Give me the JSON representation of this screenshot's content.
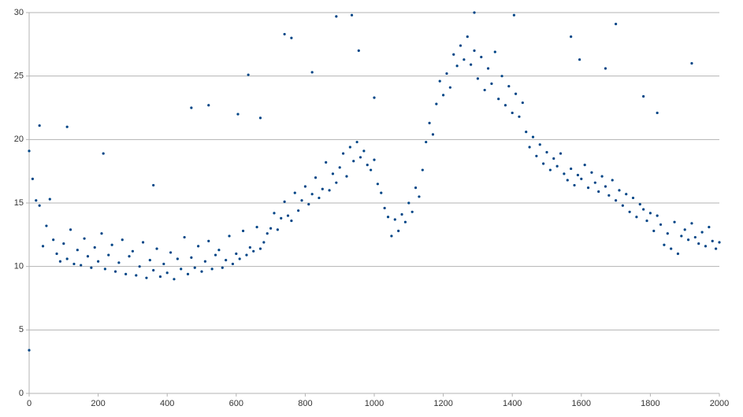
{
  "chart_data": {
    "type": "scatter",
    "color": "#004586",
    "grid": true,
    "xlim": [
      0,
      2000
    ],
    "ylim": [
      0,
      30
    ],
    "xticks": [
      0,
      200,
      400,
      600,
      800,
      1000,
      1200,
      1400,
      1600,
      1800,
      2000
    ],
    "yticks": [
      0,
      5,
      10,
      15,
      20,
      25,
      30
    ],
    "x": [
      0,
      10,
      20,
      30,
      40,
      50,
      60,
      70,
      80,
      90,
      100,
      110,
      120,
      130,
      140,
      150,
      160,
      170,
      180,
      190,
      200,
      210,
      220,
      230,
      240,
      250,
      260,
      270,
      280,
      290,
      300,
      310,
      320,
      330,
      340,
      350,
      360,
      370,
      380,
      390,
      400,
      410,
      420,
      430,
      440,
      450,
      460,
      470,
      480,
      490,
      500,
      510,
      520,
      530,
      540,
      550,
      560,
      570,
      580,
      590,
      600,
      610,
      620,
      630,
      640,
      650,
      660,
      670,
      680,
      690,
      700,
      710,
      720,
      730,
      740,
      750,
      760,
      770,
      780,
      790,
      800,
      810,
      820,
      830,
      840,
      850,
      860,
      870,
      880,
      890,
      900,
      910,
      920,
      930,
      940,
      950,
      960,
      970,
      980,
      990,
      1000,
      1010,
      1020,
      1030,
      1040,
      1050,
      1060,
      1070,
      1080,
      1090,
      1100,
      1110,
      1120,
      1130,
      1140,
      1150,
      1160,
      1170,
      1180,
      1190,
      1200,
      1210,
      1220,
      1230,
      1240,
      1250,
      1260,
      1270,
      1280,
      1290,
      1300,
      1310,
      1320,
      1330,
      1340,
      1350,
      1360,
      1370,
      1380,
      1390,
      1400,
      1410,
      1420,
      1430,
      1440,
      1450,
      1460,
      1470,
      1480,
      1490,
      1500,
      1510,
      1520,
      1530,
      1540,
      1550,
      1560,
      1570,
      1580,
      1590,
      1600,
      1610,
      1620,
      1630,
      1640,
      1650,
      1660,
      1670,
      1680,
      1690,
      1700,
      1710,
      1720,
      1730,
      1740,
      1750,
      1760,
      1770,
      1780,
      1790,
      1800,
      1810,
      1820,
      1830,
      1840,
      1850,
      1860,
      1870,
      1880,
      1890,
      1900,
      1910,
      1920,
      1930,
      1940,
      1950,
      1960,
      1970,
      1980,
      1990,
      2000,
      0,
      30,
      110,
      215,
      360,
      470,
      520,
      605,
      635,
      670,
      740,
      760,
      820,
      890,
      935,
      955,
      1000,
      1290,
      1405,
      1570,
      1595,
      1670,
      1700,
      1780,
      1820,
      1920
    ],
    "values": [
      19.1,
      16.9,
      15.2,
      14.8,
      11.6,
      13.2,
      15.3,
      12.1,
      11.0,
      10.4,
      11.8,
      10.6,
      12.9,
      10.2,
      11.3,
      10.1,
      12.2,
      10.8,
      9.9,
      11.5,
      10.4,
      12.6,
      9.8,
      10.9,
      11.7,
      9.6,
      10.3,
      12.1,
      9.4,
      10.8,
      11.2,
      9.3,
      10.0,
      11.9,
      9.1,
      10.5,
      9.7,
      11.4,
      9.2,
      10.2,
      9.5,
      11.1,
      9.0,
      10.6,
      9.8,
      12.3,
      9.4,
      10.7,
      9.9,
      11.6,
      9.6,
      10.4,
      12.0,
      9.8,
      10.9,
      11.3,
      9.9,
      10.5,
      12.4,
      10.2,
      11.0,
      10.6,
      12.8,
      10.9,
      11.5,
      11.2,
      13.1,
      11.4,
      11.9,
      12.6,
      13.0,
      14.2,
      12.9,
      13.8,
      15.1,
      14.0,
      13.6,
      15.8,
      14.4,
      15.2,
      16.3,
      14.9,
      15.7,
      17.0,
      15.4,
      16.1,
      18.2,
      16.0,
      17.3,
      16.6,
      17.8,
      18.9,
      17.1,
      19.4,
      18.3,
      19.8,
      18.6,
      19.1,
      18.0,
      17.6,
      18.4,
      16.5,
      15.8,
      14.6,
      13.9,
      12.4,
      13.7,
      12.8,
      14.1,
      13.5,
      15.0,
      14.3,
      16.2,
      15.5,
      17.6,
      19.8,
      21.3,
      20.4,
      22.8,
      24.6,
      23.5,
      25.2,
      24.1,
      26.7,
      25.8,
      27.4,
      26.3,
      28.1,
      25.9,
      27.0,
      24.8,
      26.5,
      23.9,
      25.6,
      24.4,
      26.9,
      23.2,
      25.0,
      22.7,
      24.2,
      22.1,
      23.6,
      21.8,
      22.9,
      20.6,
      19.4,
      20.2,
      18.7,
      19.6,
      18.1,
      19.0,
      17.6,
      18.5,
      17.9,
      18.9,
      17.3,
      16.8,
      17.7,
      16.4,
      17.2,
      16.9,
      18.0,
      16.2,
      17.4,
      16.6,
      15.9,
      17.1,
      16.3,
      15.6,
      16.8,
      15.2,
      16.0,
      14.8,
      15.7,
      14.3,
      15.4,
      13.9,
      14.9,
      14.5,
      13.6,
      14.2,
      12.8,
      14.0,
      13.3,
      11.7,
      12.6,
      11.4,
      13.5,
      11.0,
      12.4,
      12.9,
      12.1,
      13.4,
      12.3,
      11.8,
      12.7,
      11.6,
      13.1,
      12.0,
      11.4,
      11.9,
      3.4,
      21.1,
      21.0,
      18.9,
      16.4,
      22.5,
      22.7,
      22.0,
      25.1,
      21.7,
      28.3,
      28.0,
      25.3,
      29.7,
      29.8,
      27.0,
      23.3,
      30.0,
      29.8,
      28.1,
      26.3,
      25.6,
      29.1,
      23.4,
      22.1,
      26.0
    ]
  }
}
